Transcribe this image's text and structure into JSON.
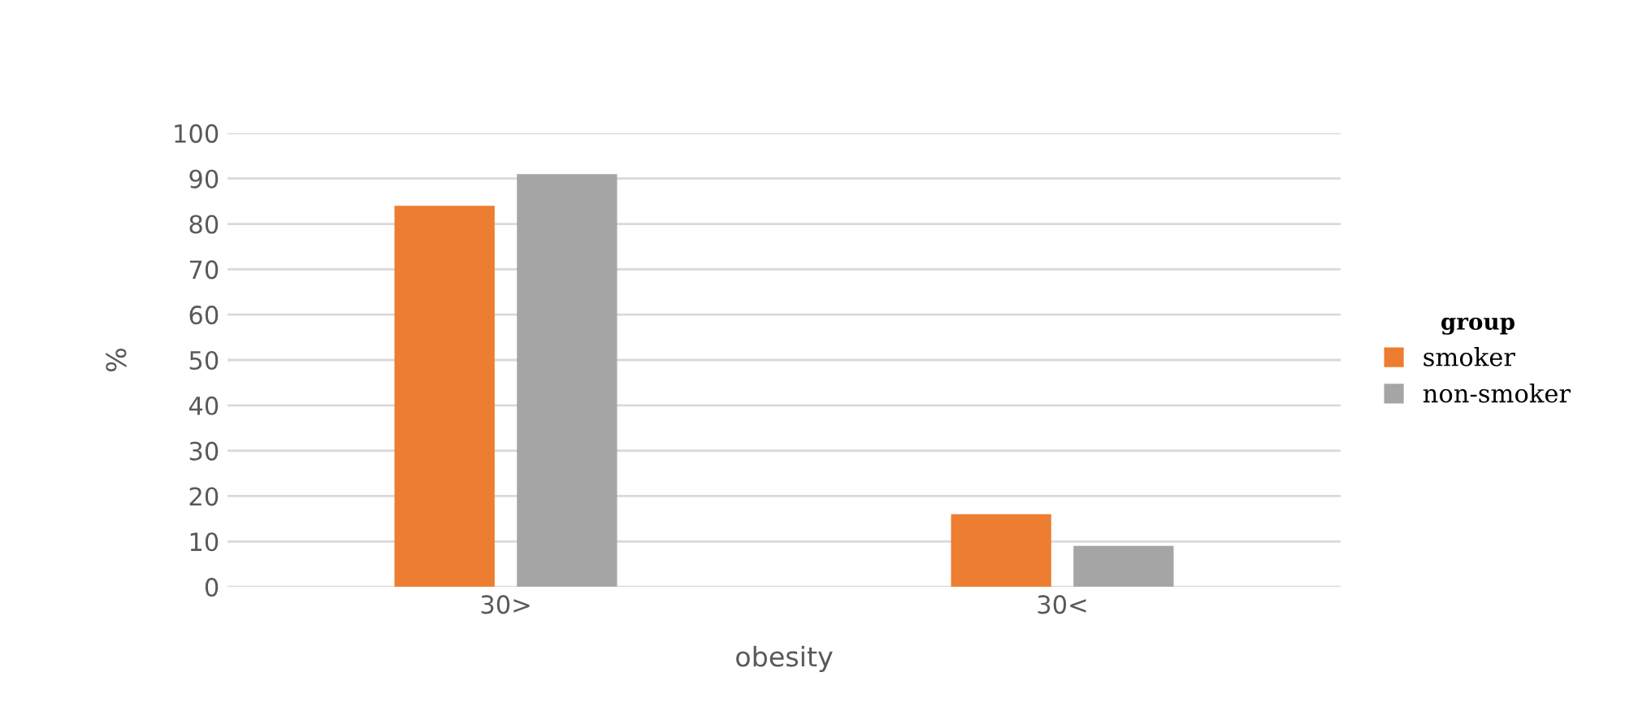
{
  "chart_data": {
    "type": "bar",
    "xlabel": "obesity",
    "ylabel": "%",
    "legend_title": "group",
    "categories": [
      "30>",
      "30<"
    ],
    "series": [
      {
        "name": "smoker",
        "color": "#ed7d31",
        "values": [
          84,
          16
        ]
      },
      {
        "name": "non-smoker",
        "color": "#a5a5a5",
        "values": [
          91,
          9
        ]
      }
    ],
    "ylim": [
      0,
      100
    ],
    "yticks": [
      0,
      10,
      20,
      30,
      40,
      50,
      60,
      70,
      80,
      90,
      100
    ],
    "grid": "y",
    "legend": "right"
  }
}
